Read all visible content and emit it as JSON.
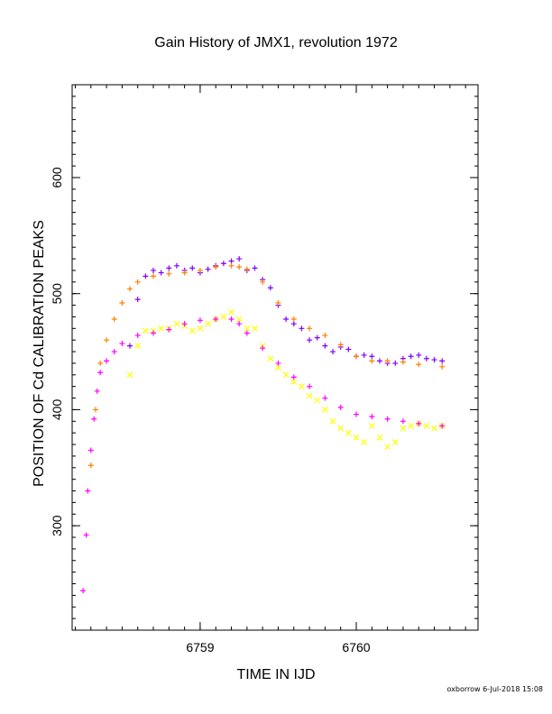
{
  "chart_data": {
    "type": "scatter",
    "title": "Gain History of JMX1, revolution 1972",
    "xlabel": "TIME IN IJD",
    "ylabel": "POSITION OF Cd CALIBRATION PEAKS",
    "xlim": [
      6758.18,
      6760.78
    ],
    "ylim": [
      210,
      680
    ],
    "xticks": [
      6759,
      6760
    ],
    "yticks": [
      300,
      400,
      500,
      600
    ],
    "grid": false,
    "series": [
      {
        "marker": "cross",
        "color": "#8000ff",
        "x": [
          6758.55,
          6758.6,
          6758.65,
          6758.7,
          6758.75,
          6758.8,
          6758.85,
          6758.9,
          6758.95,
          6759.0,
          6759.05,
          6759.1,
          6759.15,
          6759.2,
          6759.25,
          6759.3,
          6759.35,
          6759.4,
          6759.45,
          6759.5,
          6759.55,
          6759.6,
          6759.65,
          6759.7,
          6759.75,
          6759.8,
          6759.85,
          6759.9,
          6759.95,
          6760.0,
          6760.05,
          6760.1,
          6760.15,
          6760.2,
          6760.25,
          6760.3,
          6760.35,
          6760.4,
          6760.45,
          6760.5,
          6760.55
        ],
        "y": [
          455,
          495,
          515,
          520,
          518,
          522,
          524,
          520,
          522,
          518,
          521,
          524,
          526,
          528,
          530,
          520,
          522,
          512,
          505,
          490,
          478,
          474,
          470,
          460,
          462,
          455,
          450,
          454,
          452,
          446,
          447,
          446,
          442,
          440,
          440,
          444,
          446,
          447,
          444,
          443,
          442
        ]
      },
      {
        "marker": "x",
        "color": "#ffff00",
        "x": [
          6758.55,
          6758.6,
          6758.65,
          6758.7,
          6758.75,
          6758.8,
          6758.85,
          6758.9,
          6758.95,
          6759.0,
          6759.05,
          6759.1,
          6759.15,
          6759.2,
          6759.25,
          6759.3,
          6759.35,
          6759.4,
          6759.45,
          6759.5,
          6759.55,
          6759.6,
          6759.65,
          6759.7,
          6759.75,
          6759.8,
          6759.85,
          6759.9,
          6759.95,
          6760.0,
          6760.05,
          6760.1,
          6760.15,
          6760.2,
          6760.25,
          6760.3,
          6760.35,
          6760.4,
          6760.45,
          6760.5,
          6760.55
        ],
        "y": [
          430,
          455,
          468,
          468,
          470,
          470,
          474,
          472,
          468,
          470,
          474,
          478,
          480,
          484,
          478,
          470,
          470,
          455,
          444,
          436,
          430,
          424,
          420,
          412,
          408,
          400,
          390,
          384,
          380,
          376,
          372,
          386,
          376,
          368,
          372,
          384,
          386,
          388,
          386,
          384,
          386
        ]
      },
      {
        "marker": "plus",
        "color": "#ff8000",
        "x": [
          6758.3,
          6758.33,
          6758.36,
          6758.4,
          6758.45,
          6758.5,
          6758.55,
          6758.6,
          6758.7,
          6758.8,
          6758.9,
          6759.0,
          6759.1,
          6759.2,
          6759.25,
          6759.3,
          6759.4,
          6759.5,
          6759.6,
          6759.7,
          6759.8,
          6759.9,
          6760.0,
          6760.1,
          6760.2,
          6760.3,
          6760.4,
          6760.55
        ],
        "y": [
          352,
          400,
          440,
          460,
          478,
          492,
          504,
          510,
          515,
          517,
          518,
          520,
          523,
          524,
          523,
          521,
          510,
          492,
          478,
          470,
          464,
          456,
          446,
          442,
          442,
          441,
          439,
          437
        ]
      },
      {
        "marker": "plus",
        "color": "#ff00ff",
        "x": [
          6758.25,
          6758.27,
          6758.28,
          6758.3,
          6758.32,
          6758.34,
          6758.36,
          6758.4,
          6758.45,
          6758.5,
          6758.6,
          6758.7,
          6758.8,
          6758.9,
          6759.0,
          6759.1,
          6759.2,
          6759.25,
          6759.3,
          6759.4,
          6759.5,
          6759.6,
          6759.7,
          6759.8,
          6759.9,
          6760.0,
          6760.1,
          6760.2,
          6760.3,
          6760.4,
          6760.55
        ],
        "y": [
          244,
          292,
          330,
          365,
          392,
          416,
          432,
          442,
          450,
          457,
          464,
          466,
          469,
          474,
          477,
          478,
          478,
          474,
          466,
          453,
          440,
          428,
          420,
          410,
          402,
          396,
          394,
          392,
          390,
          388,
          386
        ]
      }
    ]
  },
  "footer": {
    "text": "oxborrow  6-Jul-2018 15:08"
  }
}
